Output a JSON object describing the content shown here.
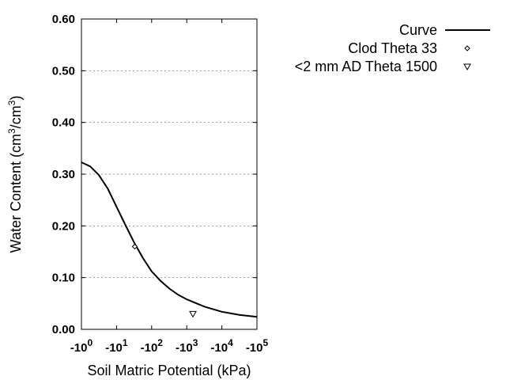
{
  "chart_data": {
    "type": "line",
    "xlabel": "Soil Matric Potential (kPa)",
    "ylabel_parts": [
      "Water Content (cm",
      "3",
      "/cm",
      "3",
      ")"
    ],
    "x_scale": "log",
    "xlim": [
      -1,
      -100000
    ],
    "ylim": [
      0,
      0.6
    ],
    "x_ticks": [
      {
        "base": "-10",
        "exp": "0"
      },
      {
        "base": "-10",
        "exp": "1"
      },
      {
        "base": "-10",
        "exp": "2"
      },
      {
        "base": "-10",
        "exp": "3"
      },
      {
        "base": "-10",
        "exp": "4"
      },
      {
        "base": "-10",
        "exp": "5"
      }
    ],
    "y_ticks": [
      "0.00",
      "0.10",
      "0.20",
      "0.30",
      "0.40",
      "0.50",
      "0.60"
    ],
    "grid": "horizontal dotted",
    "legend_placement": "top-right outside",
    "series": [
      {
        "name": "Curve",
        "style": "line",
        "x": [
          -1,
          -1.78,
          -3.16,
          -5.62,
          -10,
          -17.8,
          -31.6,
          -56.2,
          -100,
          -178,
          -316,
          -562,
          -1000,
          -3162,
          -10000,
          -31623,
          -100000
        ],
        "y": [
          0.323,
          0.315,
          0.298,
          0.272,
          0.237,
          0.202,
          0.168,
          0.138,
          0.112,
          0.094,
          0.079,
          0.067,
          0.058,
          0.044,
          0.034,
          0.028,
          0.024
        ]
      },
      {
        "name": "Clod Theta 33",
        "style": "diamond",
        "x": [
          -33
        ],
        "y": [
          0.16
        ]
      },
      {
        "name": "<2 mm AD Theta 1500",
        "style": "triangle-down",
        "x": [
          -1500
        ],
        "y": [
          0.03
        ]
      }
    ]
  }
}
